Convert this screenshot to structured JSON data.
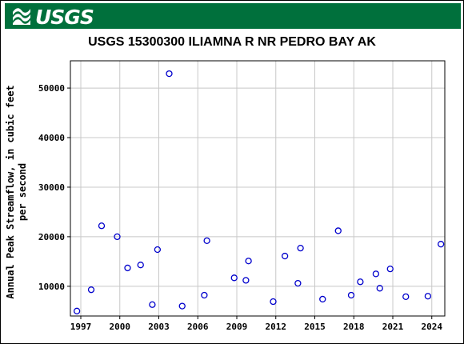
{
  "header": {
    "logo_text": "USGS",
    "banner_color": "#00703c"
  },
  "chart_data": {
    "type": "scatter",
    "title": "USGS 15300300 ILIAMNA R NR PEDRO BAY AK",
    "xlabel": "",
    "ylabel": "Annual Peak Streamflow, in cubic feet per second",
    "ylabel_lines": [
      "Annual Peak Streamflow, in cubic feet",
      "per second"
    ],
    "xlim": [
      1996.2,
      2025.0
    ],
    "ylim": [
      4000,
      55500
    ],
    "xticks": [
      1997,
      2000,
      2003,
      2006,
      2009,
      2012,
      2015,
      2018,
      2021,
      2024
    ],
    "yticks": [
      10000,
      20000,
      30000,
      40000,
      50000
    ],
    "grid": true,
    "marker": "open-circle",
    "marker_color": "#0000cc",
    "points": [
      {
        "x": 1996.7,
        "y": 5000
      },
      {
        "x": 1997.8,
        "y": 9300
      },
      {
        "x": 1998.6,
        "y": 22200
      },
      {
        "x": 1999.8,
        "y": 20000
      },
      {
        "x": 2000.6,
        "y": 13700
      },
      {
        "x": 2001.6,
        "y": 14300
      },
      {
        "x": 2002.5,
        "y": 6300
      },
      {
        "x": 2002.9,
        "y": 17400
      },
      {
        "x": 2003.8,
        "y": 52900
      },
      {
        "x": 2004.8,
        "y": 6000
      },
      {
        "x": 2006.5,
        "y": 8200
      },
      {
        "x": 2006.7,
        "y": 19200
      },
      {
        "x": 2008.8,
        "y": 11700
      },
      {
        "x": 2009.7,
        "y": 11200
      },
      {
        "x": 2009.9,
        "y": 15100
      },
      {
        "x": 2011.8,
        "y": 6900
      },
      {
        "x": 2012.7,
        "y": 16100
      },
      {
        "x": 2013.7,
        "y": 10600
      },
      {
        "x": 2013.9,
        "y": 17700
      },
      {
        "x": 2015.6,
        "y": 7400
      },
      {
        "x": 2016.8,
        "y": 21200
      },
      {
        "x": 2017.8,
        "y": 8200
      },
      {
        "x": 2018.5,
        "y": 10900
      },
      {
        "x": 2019.7,
        "y": 12500
      },
      {
        "x": 2020.0,
        "y": 9600
      },
      {
        "x": 2020.8,
        "y": 13500
      },
      {
        "x": 2022.0,
        "y": 7900
      },
      {
        "x": 2023.7,
        "y": 8000
      },
      {
        "x": 2024.7,
        "y": 18500
      }
    ]
  }
}
